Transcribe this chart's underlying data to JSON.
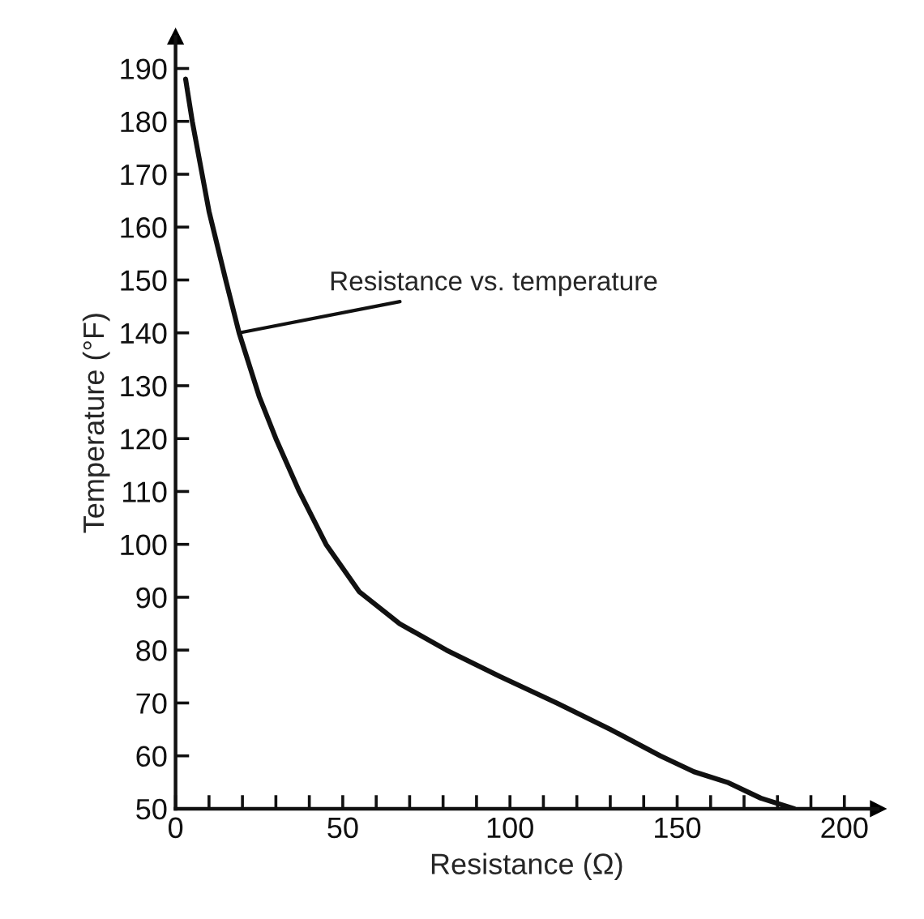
{
  "chart_data": {
    "type": "line",
    "xlabel": "Resistance (Ω)",
    "ylabel": "Temperature (°F)",
    "series": [
      {
        "color": "#111111",
        "x": [
          3,
          5,
          10,
          15,
          19,
          25,
          30,
          37,
          45,
          55,
          67,
          81,
          97,
          114,
          130,
          145,
          155,
          165,
          175,
          185
        ],
        "values": [
          188,
          180,
          163,
          150,
          140,
          128,
          120,
          110,
          100,
          91,
          85,
          80,
          75,
          70,
          65,
          60,
          57,
          55,
          52,
          50
        ]
      }
    ],
    "annotations": [
      {
        "text": "Resistance vs. temperature",
        "x": 19,
        "y": 140
      }
    ],
    "xlim": [
      0,
      210
    ],
    "ylim": [
      50,
      196
    ],
    "xticks": [
      0,
      {
        "value": 10,
        "label": null
      },
      {
        "value": 20,
        "label": null
      },
      {
        "value": 30,
        "label": null
      },
      {
        "value": 40,
        "label": null
      },
      50,
      {
        "value": 60,
        "label": null
      },
      {
        "value": 70,
        "label": null
      },
      {
        "value": 80,
        "label": null
      },
      {
        "value": 90,
        "label": null
      },
      100,
      {
        "value": 110,
        "label": null
      },
      {
        "value": 120,
        "label": null
      },
      {
        "value": 130,
        "label": null
      },
      {
        "value": 140,
        "label": null
      },
      150,
      {
        "value": 160,
        "label": null
      },
      {
        "value": 170,
        "label": null
      },
      {
        "value": 180,
        "label": null
      },
      {
        "value": 190,
        "label": null
      },
      200
    ],
    "yticks": [
      50,
      60,
      70,
      80,
      90,
      100,
      110,
      120,
      130,
      140,
      150,
      160,
      170,
      180,
      190
    ],
    "grid": false,
    "legend": false,
    "marker": "none",
    "line_style": "solid"
  }
}
